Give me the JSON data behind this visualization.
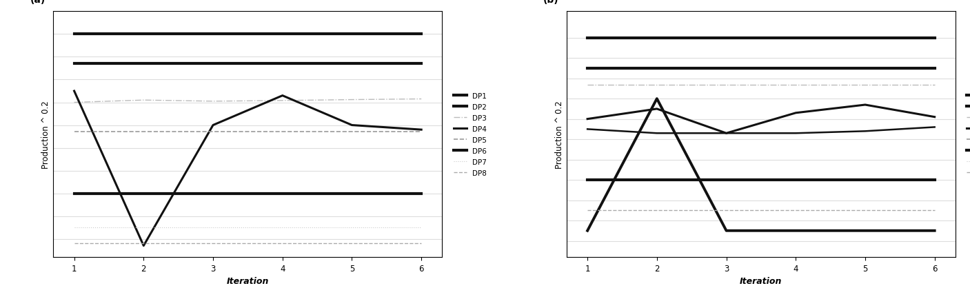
{
  "iterations": [
    1,
    2,
    3,
    4,
    5,
    6
  ],
  "panel_a": {
    "DP1": {
      "y": [
        9.5,
        9.5,
        9.5,
        9.5,
        9.5,
        9.5
      ],
      "lw": 3.0,
      "color": "#111111",
      "ls": "-"
    },
    "DP2": {
      "y": [
        8.2,
        8.2,
        8.2,
        8.2,
        8.2,
        8.2
      ],
      "lw": 3.0,
      "color": "#111111",
      "ls": "-"
    },
    "DP3": {
      "y": [
        6.5,
        6.6,
        6.55,
        6.58,
        6.62,
        6.65
      ],
      "lw": 1.0,
      "color": "#bbbbbb",
      "ls": "-."
    },
    "DP4": {
      "y": [
        7.0,
        0.2,
        5.5,
        6.8,
        5.5,
        5.3
      ],
      "lw": 2.2,
      "color": "#111111",
      "ls": "-"
    },
    "DP5": {
      "y": [
        5.2,
        5.2,
        5.2,
        5.2,
        5.2,
        5.2
      ],
      "lw": 1.2,
      "color": "#999999",
      "ls": "--"
    },
    "DP6": {
      "y": [
        2.5,
        2.5,
        2.5,
        2.5,
        2.5,
        2.5
      ],
      "lw": 3.0,
      "color": "#111111",
      "ls": "-"
    },
    "DP7": {
      "y": [
        1.0,
        1.0,
        1.0,
        1.0,
        1.0,
        1.0
      ],
      "lw": 0.8,
      "color": "#cccccc",
      "ls": "dotted"
    },
    "DP8": {
      "y": [
        0.3,
        0.3,
        0.3,
        0.3,
        0.3,
        0.3
      ],
      "lw": 1.0,
      "color": "#aaaaaa",
      "ls": "--"
    }
  },
  "panel_b": {
    "DP1": {
      "y": [
        10.5,
        10.5,
        10.5,
        10.5,
        10.5,
        10.5
      ],
      "lw": 3.0,
      "color": "#111111",
      "ls": "-"
    },
    "DP2": {
      "y": [
        9.0,
        9.0,
        9.0,
        9.0,
        9.0,
        9.0
      ],
      "lw": 3.0,
      "color": "#111111",
      "ls": "-"
    },
    "DP3": {
      "y": [
        8.2,
        8.2,
        8.2,
        8.2,
        8.2,
        8.2
      ],
      "lw": 1.0,
      "color": "#bbbbbb",
      "ls": "-."
    },
    "DP4": {
      "y": [
        6.5,
        7.0,
        5.8,
        6.8,
        7.2,
        6.6
      ],
      "lw": 2.2,
      "color": "#111111",
      "ls": "-"
    },
    "DP5": {
      "y": [
        6.0,
        5.8,
        5.8,
        5.8,
        5.9,
        6.1
      ],
      "lw": 1.8,
      "color": "#111111",
      "ls": "-"
    },
    "DP6": {
      "y": [
        3.5,
        3.5,
        3.5,
        3.5,
        3.5,
        3.5
      ],
      "lw": 3.0,
      "color": "#111111",
      "ls": "-"
    },
    "DP7": {
      "y": [
        1.0,
        7.5,
        1.0,
        1.0,
        1.0,
        1.0
      ],
      "lw": 2.8,
      "color": "#111111",
      "ls": "-"
    },
    "DP8": {
      "y": [
        2.0,
        2.0,
        2.0,
        2.0,
        2.0,
        2.0
      ],
      "lw": 1.0,
      "color": "#aaaaaa",
      "ls": "--"
    }
  },
  "xlabel": "Iteration",
  "ylabel": "Production ^ 0.2",
  "xlim": [
    0.7,
    6.3
  ],
  "xticks": [
    1,
    2,
    3,
    4,
    5,
    6
  ],
  "panel_a_ylim": [
    -0.3,
    10.5
  ],
  "panel_b_ylim": [
    -0.3,
    11.8
  ],
  "grid_color": "#dddddd",
  "panel_a_gridlines": [
    0.5,
    1.5,
    2.5,
    3.5,
    4.5,
    5.5,
    6.5,
    7.5,
    8.5,
    9.5
  ],
  "panel_b_gridlines": [
    0.5,
    1.5,
    2.5,
    3.5,
    4.5,
    5.5,
    6.5,
    7.5,
    8.5,
    9.5,
    10.5
  ],
  "legend_labels": [
    "DP1",
    "DP2",
    "DP3",
    "DP4",
    "DP5",
    "DP6",
    "DP7",
    "DP8"
  ],
  "legend_styles": {
    "DP1": {
      "lw": 3.0,
      "color": "#111111",
      "ls": "-"
    },
    "DP2": {
      "lw": 3.0,
      "color": "#111111",
      "ls": "-"
    },
    "DP3": {
      "lw": 1.0,
      "color": "#bbbbbb",
      "ls": "-."
    },
    "DP4": {
      "lw": 2.2,
      "color": "#111111",
      "ls": "-"
    },
    "DP5": {
      "lw": 1.2,
      "color": "#999999",
      "ls": "--"
    },
    "DP6": {
      "lw": 3.0,
      "color": "#111111",
      "ls": "-"
    },
    "DP7": {
      "lw": 0.8,
      "color": "#cccccc",
      "ls": "dotted"
    },
    "DP8": {
      "lw": 1.0,
      "color": "#aaaaaa",
      "ls": "--"
    }
  }
}
